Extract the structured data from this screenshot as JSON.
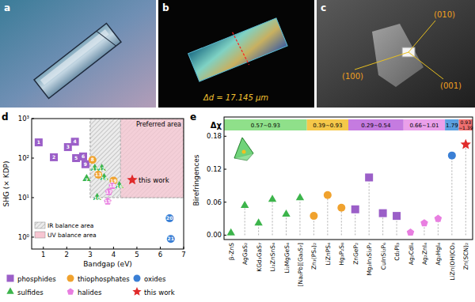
{
  "panels": [
    {
      "label": "a"
    },
    {
      "label": "b",
      "annotation": "Δd = 17.145 μm"
    },
    {
      "label": "c",
      "annotations": [
        "(010)",
        "(100)",
        "(001)"
      ]
    }
  ],
  "chart_data": [
    {
      "type": "scatter",
      "panel_label": "d",
      "x_label": "Bandgap (eV)",
      "y_label": "SHG (× KDP)",
      "log": "y",
      "xlim": [
        0.5,
        7
      ],
      "xticks": [
        1,
        2,
        3,
        4,
        5,
        6,
        7
      ],
      "ylim": [
        0.5,
        1000
      ],
      "yticks": [
        {
          "value": 1,
          "label": "10⁰"
        },
        {
          "value": 10,
          "label": "10¹"
        },
        {
          "value": 100,
          "label": "10²"
        },
        {
          "value": 1000,
          "label": "10³"
        }
      ],
      "legend": "bottom",
      "annotations": [
        "Preferred area"
      ],
      "regions": [
        {
          "name": "IR balance area",
          "color": "#c8c8c8",
          "xrange": [
            3,
            7
          ],
          "yrange": [
            10,
            1000
          ]
        },
        {
          "name": "UV balance area",
          "color": "#f7c6d2",
          "xrange": [
            4.3,
            7
          ],
          "yrange": [
            10,
            1000
          ]
        }
      ],
      "series": [
        {
          "name": "phosphides",
          "color": "#9b5fc8",
          "marker": "square",
          "x": [
            0.8,
            1.45,
            2.05,
            2.35,
            2.4,
            2.7,
            2.8
          ],
          "values": [
            250,
            105,
            190,
            260,
            100,
            110,
            70
          ],
          "labels": [
            "1",
            "2",
            "3",
            "4",
            "5",
            "6",
            "9"
          ]
        },
        {
          "name": "thiophosphates",
          "color": "#f0a22e",
          "marker": "circle",
          "x": [
            3.1,
            3.35,
            4.0
          ],
          "values": [
            90,
            38,
            27
          ],
          "labels": [
            "8",
            "13",
            "19"
          ]
        },
        {
          "name": "oxides",
          "color": "#3a7fd5",
          "marker": "circle",
          "x": [
            6.4,
            6.45
          ],
          "values": [
            3,
            0.9
          ],
          "labels": [
            "20",
            "21"
          ]
        },
        {
          "name": "sulfides",
          "color": "#3cb44b",
          "marker": "triangle",
          "x": [
            2.85,
            3.3,
            3.2,
            3.5,
            3.6,
            4.25
          ],
          "values": [
            30,
            10,
            55,
            55,
            32,
            20
          ],
          "labels": [
            "7",
            "10",
            "11",
            "12",
            "14",
            "16"
          ]
        },
        {
          "name": "halides",
          "color": "#e87ee0",
          "marker": "pentagon",
          "x": [
            3.75,
            3.8,
            3.95
          ],
          "values": [
            8,
            14,
            20
          ],
          "labels": [
            "15",
            "17",
            "18"
          ]
        },
        {
          "name": "this work",
          "color": "#e02a2a",
          "marker": "star",
          "x": [
            4.8
          ],
          "values": [
            28
          ]
        }
      ]
    },
    {
      "type": "lollipop",
      "panel_label": "e",
      "y_label": "Birefringences",
      "band_title": "Δχ",
      "categories": [
        "β-ZnS",
        "AgGaS₂",
        "KGd₃GaS₇",
        "Li₂ZnSnS₄",
        "Li₂MgGeS₄",
        "[Na₂Pb][Ga₃S₇]",
        "Zn₃(PS₄)₂",
        "LiZnPS₄",
        "Hg₃P₂S₈",
        "ZnGeP₂",
        "Mg₂In₃Si₂P₇",
        "CuInSi₂P₆",
        "Cd₂PI₃",
        "Ag₂CdI₄",
        "Ag₂ZnI₄",
        "Ag₂HgI₄",
        "LiZn(OH)CO₃",
        "Zn(SCN)₂"
      ],
      "ylim": [
        -0.008,
        0.215
      ],
      "yticks": [
        {
          "value": 0,
          "label": "0.00"
        },
        0.06,
        0.12,
        0.18
      ],
      "bands": [
        {
          "label": "0.57~0.93",
          "color": "#8fe08a",
          "start": "β-ZnS",
          "end": "[Na₂Pb][Ga₃S₇]"
        },
        {
          "label": "0.39~0.93",
          "color": "#f5c84a",
          "start": "Zn₃(PS₄)₂",
          "end": "Hg₃P₂S₈"
        },
        {
          "label": "0.29~0.54",
          "color": "#c57be0",
          "start": "ZnGeP₂",
          "end": "Cd₂PI₃"
        },
        {
          "label": "0.66~1.01",
          "color": "#eaa0ea",
          "start": "Ag₂CdI₄",
          "end": "Ag₂HgI₄"
        },
        {
          "label": "1.79",
          "color": "#5aa0e0",
          "start": "LiZn(OH)CO₃",
          "end": "LiZn(OH)CO₃"
        },
        {
          "label": "0.93~1.39",
          "color": "#f07070",
          "start": "Zn(SCN)₂",
          "end": "Zn(SCN)₂"
        }
      ],
      "series": [
        {
          "name": "sulfides",
          "color": "#3cb44b",
          "marker": "triangle",
          "values": [
            0.004,
            0.054,
            0.022,
            0.065,
            0.038,
            0.068,
            null,
            null,
            null,
            null,
            null,
            null,
            null,
            null,
            null,
            null,
            null,
            null
          ]
        },
        {
          "name": "thiophosphates",
          "color": "#f0a22e",
          "marker": "circle",
          "values": [
            null,
            null,
            null,
            null,
            null,
            null,
            0.035,
            0.073,
            0.05,
            null,
            null,
            null,
            null,
            null,
            null,
            null,
            null,
            null
          ]
        },
        {
          "name": "phosphides",
          "color": "#9b5fc8",
          "marker": "square",
          "values": [
            null,
            null,
            null,
            null,
            null,
            null,
            null,
            null,
            null,
            0.047,
            0.105,
            0.04,
            0.035,
            null,
            null,
            null,
            null,
            null
          ]
        },
        {
          "name": "halides",
          "color": "#e87ee0",
          "marker": "pentagon",
          "values": [
            null,
            null,
            null,
            null,
            null,
            null,
            null,
            null,
            null,
            null,
            null,
            null,
            null,
            0.005,
            0.022,
            0.03,
            null,
            null
          ]
        },
        {
          "name": "oxides",
          "color": "#3a7fd5",
          "marker": "circle",
          "values": [
            null,
            null,
            null,
            null,
            null,
            null,
            null,
            null,
            null,
            null,
            null,
            null,
            null,
            null,
            null,
            null,
            0.145,
            null
          ]
        },
        {
          "name": "this work",
          "color": "#e02a2a",
          "marker": "star",
          "values": [
            null,
            null,
            null,
            null,
            null,
            null,
            null,
            null,
            null,
            null,
            null,
            null,
            null,
            null,
            null,
            null,
            null,
            0.165
          ]
        }
      ]
    }
  ]
}
